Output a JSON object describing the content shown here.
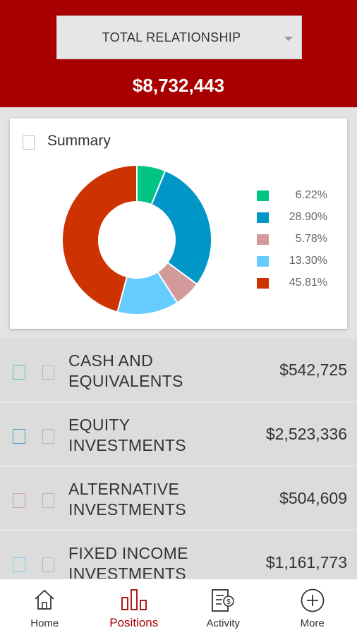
{
  "header": {
    "selector_label": "TOTAL RELATIONSHIP",
    "total_value": "$8,732,443",
    "background_color": "#a80000"
  },
  "summary": {
    "title": "Summary",
    "legend": [
      {
        "color": "#00c483",
        "value": "6.22%"
      },
      {
        "color": "#0096c8",
        "value": "28.90%"
      },
      {
        "color": "#d29a9a",
        "value": "5.78%"
      },
      {
        "color": "#66ccff",
        "value": "13.30%"
      },
      {
        "color": "#cc3300",
        "value": "45.81%"
      }
    ]
  },
  "chart_data": {
    "type": "pie",
    "values": [
      6.22,
      28.9,
      5.78,
      13.3,
      45.81
    ],
    "colors": [
      "#00c483",
      "#0096c8",
      "#d29a9a",
      "#66ccff",
      "#cc3300"
    ],
    "donut": true
  },
  "positions": [
    {
      "label": "CASH AND EQUIVALENTS",
      "value": "$542,725",
      "color": "#5cc5a8"
    },
    {
      "label": "EQUITY INVESTMENTS",
      "value": "$2,523,336",
      "color": "#4a9ec9"
    },
    {
      "label": "ALTERNATIVE INVESTMENTS",
      "value": "$504,609",
      "color": "#d4a0a0"
    },
    {
      "label": "FIXED INCOME INVESTMENTS",
      "value": "$1,161,773",
      "color": "#7ccbf2"
    }
  ],
  "tabbar": {
    "tabs": [
      {
        "label": "Home",
        "icon": "home-icon"
      },
      {
        "label": "Positions",
        "icon": "bar-chart-icon",
        "active": true
      },
      {
        "label": "Activity",
        "icon": "activity-icon"
      },
      {
        "label": "More",
        "icon": "plus-circle-icon"
      }
    ],
    "active_color": "#a80000"
  }
}
